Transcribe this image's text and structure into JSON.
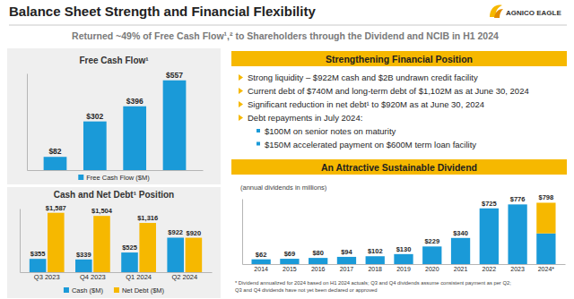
{
  "header": {
    "title": "Balance Sheet Strength and Financial Flexibility",
    "subtitle": "Returned ~49% of Free Cash Flow¹,² to Shareholders through the Dividend and NCIB in H1 2024",
    "logo": "AGNICO EAGLE"
  },
  "chart_data": [
    {
      "type": "bar",
      "title": "Free Cash Flow¹",
      "categories": [
        null,
        null,
        null,
        null
      ],
      "series": [
        {
          "name": "Free Cash Flow ($M)",
          "color": "#1a9ad8",
          "values": [
            82,
            302,
            396,
            557
          ],
          "value_labels": [
            "$82",
            "$302",
            "$396",
            "$557"
          ]
        }
      ],
      "ylim": [
        0,
        600
      ],
      "tick_labels": false,
      "data_labels": true,
      "legend": "bottom"
    },
    {
      "type": "bar",
      "title": "Cash and Net Debt¹ Position",
      "categories": [
        "Q3 2023",
        "Q4 2023",
        "Q1 2024",
        "Q2 2024"
      ],
      "series": [
        {
          "name": "Cash ($M)",
          "color": "#1a9ad8",
          "values": [
            355,
            339,
            525,
            922
          ],
          "value_labels": [
            "$355",
            "$339",
            "$525",
            "$922"
          ]
        },
        {
          "name": "Net Debt ($M)",
          "color": "#f6b800",
          "values": [
            1587,
            1504,
            1316,
            920
          ],
          "value_labels": [
            "$1,587",
            "$1,504",
            "$1,316",
            "$920"
          ]
        }
      ],
      "ylim": [
        0,
        1700
      ],
      "tick_labels": "x",
      "data_labels": true,
      "legend": "bottom"
    },
    {
      "type": "bar",
      "subtitle": "(annual dividends in millions)",
      "categories": [
        "2014",
        "2015",
        "2016",
        "2017",
        "2018",
        "2019",
        "2020",
        "2021",
        "2022",
        "2023",
        "2024*"
      ],
      "series": [
        {
          "color": "#1a9ad8",
          "values": [
            62,
            69,
            80,
            94,
            102,
            130,
            229,
            340,
            725,
            776,
            399
          ]
        },
        {
          "color": "#f6b800",
          "values": [
            null,
            null,
            null,
            null,
            null,
            null,
            null,
            null,
            null,
            null,
            399
          ]
        }
      ],
      "stacked": true,
      "totals": [
        62,
        69,
        80,
        94,
        102,
        130,
        229,
        340,
        725,
        776,
        798
      ],
      "total_labels": [
        "$62",
        "$69",
        "$80",
        "$94",
        "$102",
        "$130",
        "$229",
        "$340",
        "$725",
        "$776",
        "$798"
      ],
      "ylim": [
        0,
        850
      ],
      "tick_labels": "x"
    }
  ],
  "panels": [
    {
      "title": "Strengthening Financial Position",
      "bullets": [
        {
          "text": "Strong liquidity – $922M cash and $2B undrawn credit facility"
        },
        {
          "text": "Current debt of $740M and long-term debt of $1,102M as at June 30, 2024"
        },
        {
          "text": "Significant reduction in net debt¹ to $920M as at June 30, 2024"
        },
        {
          "text": "Debt repayments in July 2024:",
          "items": [
            "$100M on senior notes on maturity",
            "$150M accelerated payment on $600M term loan facility"
          ]
        }
      ]
    },
    {
      "title": "An Attractive Sustainable Dividend"
    }
  ],
  "footnote": [
    "* Dividend annualized for 2024 based on H1 2024 actuals; Q3 and Q4 dividends assume consistent payment as per Q2;",
    "Q3 and Q4 dividends have not yet been declared or approved"
  ]
}
